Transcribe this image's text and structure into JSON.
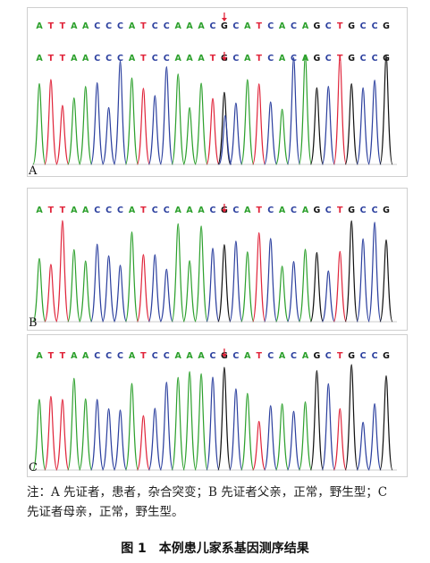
{
  "colors": {
    "A": "#2ca02c",
    "C": "#2b3f9e",
    "G": "#111111",
    "T": "#e0243a",
    "arrow": "#e0243a",
    "frame": "#cfcfcf"
  },
  "panels": [
    {
      "id": "A",
      "letter": "A",
      "reads": [
        "ATTAACCCATCCAAACGCATCACAGCTGCCG",
        "ATTAACCCATCCAAATGCATCACAGCTGCCG"
      ]
    },
    {
      "id": "B",
      "letter": "B",
      "reads": [
        "ATTAACCCATCCAAACGCATCACAGCTGCCG"
      ]
    },
    {
      "id": "C",
      "letter": "C",
      "reads": [
        "ATTAACCCATCCAAACGCATCACAGCTGCCG"
      ]
    }
  ],
  "mutation_position": 17,
  "caption": {
    "note": "注：A 先证者，患者，杂合突变；B 先证者父亲，正常，野生型；C 先证者母亲，正常，野生型。"
  },
  "figure_title": "图 1　本例患儿家系基因测序结果"
}
